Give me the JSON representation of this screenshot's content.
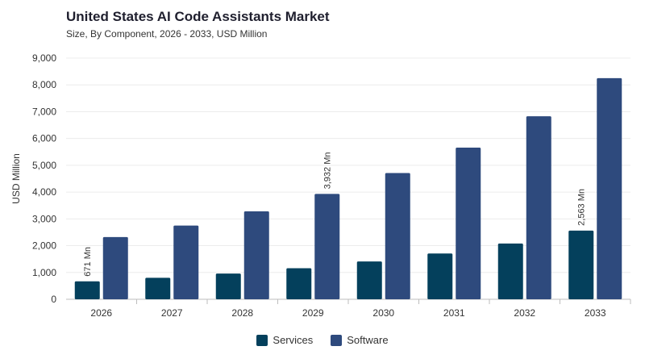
{
  "chart_data": {
    "type": "bar",
    "title": "United States AI Code Assistants Market",
    "subtitle": "Size, By Component, 2026 - 2033, USD Million",
    "ylabel": "USD Million",
    "xlabel": "",
    "ylim": [
      0,
      9000
    ],
    "yticks": [
      "0",
      "1,000",
      "2,000",
      "3,000",
      "4,000",
      "5,000",
      "6,000",
      "7,000",
      "8,000",
      "9,000"
    ],
    "categories": [
      "2026",
      "2027",
      "2028",
      "2029",
      "2030",
      "2031",
      "2032",
      "2033"
    ],
    "series": [
      {
        "name": "Services",
        "color": "#04405c",
        "values": [
          671,
          800,
          960,
          1160,
          1410,
          1710,
          2080,
          2563
        ]
      },
      {
        "name": "Software",
        "color": "#2e4a7d",
        "values": [
          2320,
          2750,
          3280,
          3932,
          4710,
          5660,
          6830,
          8250
        ]
      }
    ],
    "annotations": [
      {
        "series": 0,
        "index": 0,
        "text": "671 Mn"
      },
      {
        "series": 1,
        "index": 3,
        "text": "3,932 Mn"
      },
      {
        "series": 0,
        "index": 7,
        "text": "2,563 Mn"
      }
    ],
    "grid": true,
    "legend_position": "bottom-center"
  }
}
